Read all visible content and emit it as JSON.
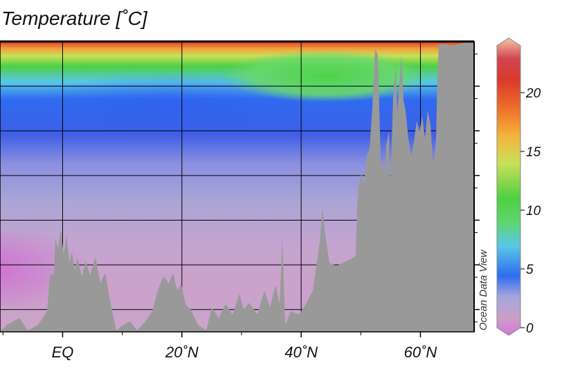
{
  "chart_data": {
    "type": "heatmap",
    "title": "Temperature [˚C]",
    "xlabel": "",
    "ylabel": "",
    "credit": "Ocean Data View",
    "x_ticks": [
      {
        "value": 0,
        "label": "EQ"
      },
      {
        "value": 20,
        "label": "20˚N"
      },
      {
        "value": 40,
        "label": "40˚N"
      },
      {
        "value": 60,
        "label": "60˚N"
      }
    ],
    "xlim": [
      -10.5,
      69
    ],
    "y_gridlines": 6,
    "colorbar": {
      "range": [
        0,
        24
      ],
      "ticks": [
        {
          "value": 0,
          "label": "0"
        },
        {
          "value": 5,
          "label": "5"
        },
        {
          "value": 10,
          "label": "10"
        },
        {
          "value": 15,
          "label": "15"
        },
        {
          "value": 20,
          "label": "20"
        }
      ],
      "colors": [
        "#d677d6",
        "#c9a0c8",
        "#a4a6de",
        "#2f6bef",
        "#59c7e8",
        "#5fd66e",
        "#4fcf44",
        "#c9e05a",
        "#f4b43c",
        "#ec6b2a",
        "#d93a2b",
        "#f6c6a4"
      ]
    },
    "grid": true,
    "bathymetry_color": "#999999"
  }
}
